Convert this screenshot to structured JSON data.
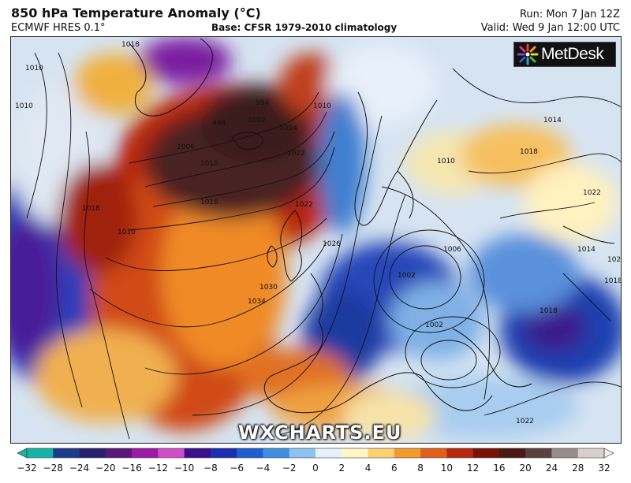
{
  "header": {
    "title": "850 hPa Temperature Anomaly (°C)",
    "model": "ECMWF HRES 0.1°",
    "base": "Base: CFSR 1979-2010 climatology",
    "run": "Run: Mon 7 Jan 12Z",
    "valid": "Valid: Wed 9 Jan 12:00 UTC"
  },
  "logo": {
    "text": "MetDesk",
    "icon": "metdesk-logo-icon"
  },
  "watermark": "WXCHARTS.EU",
  "colorbar": {
    "ticks": [
      "−32",
      "−28",
      "−24",
      "−20",
      "−16",
      "−12",
      "−10",
      "−8",
      "−6",
      "−4",
      "−2",
      "0",
      "2",
      "4",
      "6",
      "8",
      "10",
      "12",
      "16",
      "20",
      "24",
      "28",
      "32"
    ],
    "colors": [
      "#12b5a5",
      "#1e3a8a",
      "#2a1f6e",
      "#5a167a",
      "#9b1aa6",
      "#d04dc8",
      "#3a0e8c",
      "#1b2fb0",
      "#1f5fd0",
      "#3f8fe0",
      "#8cc3f0",
      "#e6f0fa",
      "#fff6c8",
      "#ffd070",
      "#f29a2e",
      "#e0601a",
      "#b8280c",
      "#7a1208",
      "#4a1a14",
      "#5a4040",
      "#9a8c8c",
      "#d8d0d0"
    ]
  },
  "isobars": [
    "1018",
    "1010",
    "1010",
    "994",
    "998",
    "1002",
    "1006",
    "1018",
    "1010",
    "1014",
    "1022",
    "1022",
    "1026",
    "1030",
    "1034",
    "1006",
    "1002",
    "1002",
    "1010",
    "1014",
    "1018",
    "1022",
    "1014",
    "1022",
    "1018",
    "1018",
    "1010",
    "1018",
    "1022",
    "1018"
  ]
}
